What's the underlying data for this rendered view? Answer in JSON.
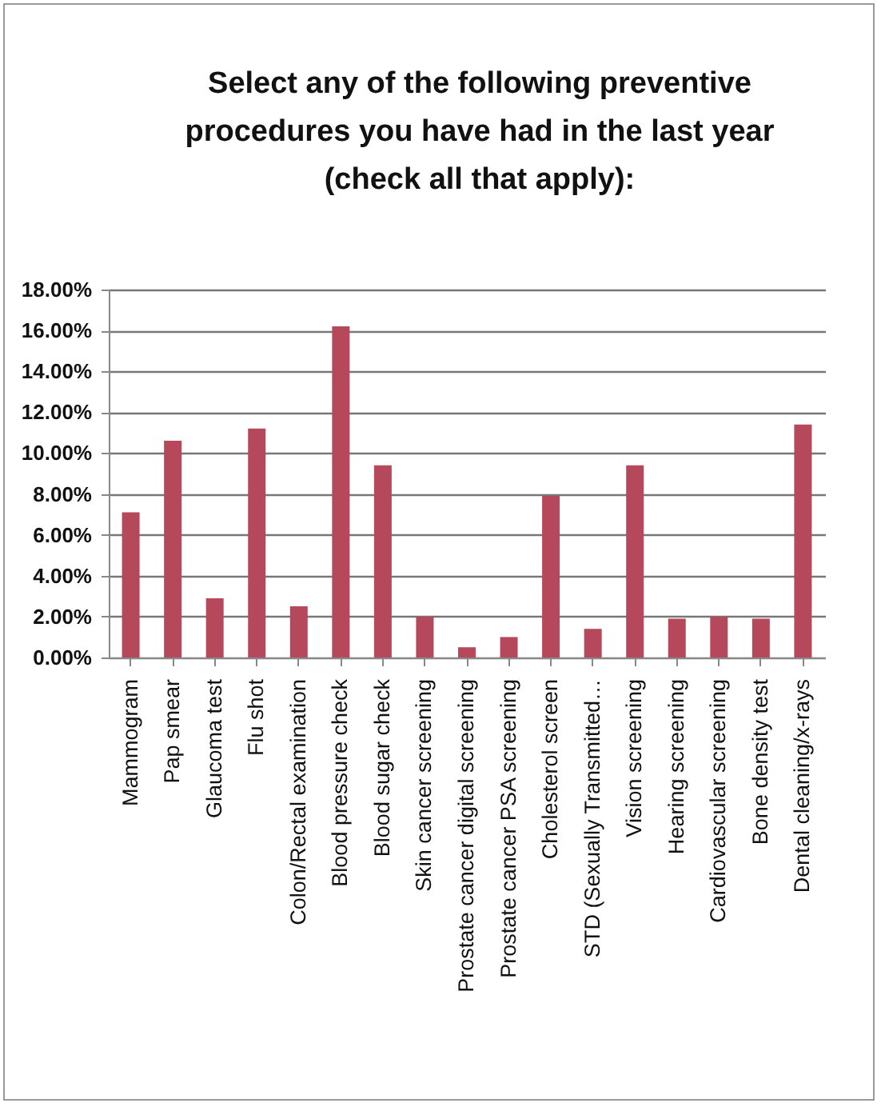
{
  "chart_data": {
    "type": "bar",
    "title": "Select any of the following preventive procedures you have had in the last year (check all that apply):",
    "categories": [
      "Mammogram",
      "Pap smear",
      "Glaucoma test",
      "Flu shot",
      "Colon/Rectal examination",
      "Blood pressure check",
      "Blood sugar check",
      "Skin cancer screening",
      "Prostate cancer digital screening",
      "Prostate cancer PSA screening",
      "Cholesterol screen",
      "STD (Sexually Transmitted…",
      "Vision screening",
      "Hearing screening",
      "Cardiovascular screening",
      "Bone density test",
      "Dental cleaning/x-rays"
    ],
    "values": [
      7.1,
      10.6,
      2.9,
      11.2,
      2.5,
      16.2,
      9.4,
      2.0,
      0.5,
      1.0,
      7.9,
      1.4,
      9.4,
      1.9,
      2.0,
      1.9,
      11.4
    ],
    "color": "#b5485a",
    "ylim": [
      0,
      18
    ],
    "yticks": [
      {
        "value": 0,
        "label": "0.00%"
      },
      {
        "value": 2,
        "label": "2.00%"
      },
      {
        "value": 4,
        "label": "4.00%"
      },
      {
        "value": 6,
        "label": "6.00%"
      },
      {
        "value": 8,
        "label": "8.00%"
      },
      {
        "value": 10,
        "label": "10.00%"
      },
      {
        "value": 12,
        "label": "12.00%"
      },
      {
        "value": 14,
        "label": "14.00%"
      },
      {
        "value": 16,
        "label": "16.00%"
      },
      {
        "value": 18,
        "label": "18.00%"
      }
    ],
    "grid": "y"
  }
}
